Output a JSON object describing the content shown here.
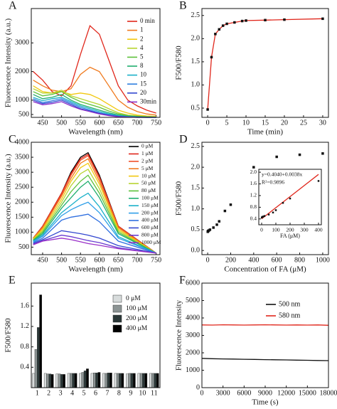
{
  "chart_data": [
    {
      "type": "line",
      "label": "A",
      "xlabel": "Wavelength (nm)",
      "ylabel": "Fluorescence Intensity (a.u.)",
      "x": [
        425,
        450,
        475,
        500,
        525,
        550,
        575,
        600,
        625,
        650,
        675,
        700,
        725,
        750
      ],
      "xlim": [
        420,
        760
      ],
      "xticks": [
        450,
        500,
        550,
        600,
        650,
        700,
        750
      ],
      "ylim": [
        400,
        4200
      ],
      "yticks": [
        500,
        1000,
        2000,
        3000
      ],
      "legend": "upper right",
      "series": [
        {
          "name": "0 min",
          "color": "#e0261b",
          "values": [
            2000,
            1700,
            1300,
            1150,
            1500,
            2600,
            3600,
            3300,
            2400,
            1500,
            1000,
            800,
            650,
            550
          ]
        },
        {
          "name": "1",
          "color": "#f07a1e",
          "values": [
            1700,
            1500,
            1350,
            1300,
            1400,
            1900,
            2150,
            2000,
            1500,
            1000,
            750,
            600,
            520,
            480
          ]
        },
        {
          "name": "2",
          "color": "#f2c80f",
          "values": [
            1500,
            1300,
            1250,
            1300,
            1200,
            1250,
            1200,
            1050,
            850,
            650,
            550,
            480,
            450,
            430
          ]
        },
        {
          "name": "4",
          "color": "#b8d430",
          "values": [
            1400,
            1250,
            1250,
            1350,
            1150,
            1050,
            950,
            850,
            700,
            560,
            480,
            450,
            430,
            420
          ]
        },
        {
          "name": "5",
          "color": "#5cc13a",
          "values": [
            1300,
            1150,
            1200,
            1300,
            1100,
            950,
            850,
            750,
            620,
            520,
            460,
            440,
            420,
            410
          ]
        },
        {
          "name": "8",
          "color": "#1fae6e",
          "values": [
            1200,
            1050,
            1100,
            1200,
            1000,
            850,
            750,
            650,
            560,
            480,
            440,
            420,
            410,
            400
          ]
        },
        {
          "name": "10",
          "color": "#1ab0c9",
          "values": [
            1100,
            980,
            1050,
            1100,
            950,
            800,
            700,
            600,
            520,
            460,
            430,
            410,
            400,
            400
          ]
        },
        {
          "name": "15",
          "color": "#2f7fe0",
          "values": [
            1050,
            920,
            980,
            1050,
            900,
            750,
            650,
            560,
            490,
            440,
            420,
            410,
            400,
            400
          ]
        },
        {
          "name": "20",
          "color": "#3348d0",
          "values": [
            1000,
            880,
            930,
            1000,
            850,
            700,
            620,
            540,
            480,
            430,
            410,
            400,
            400,
            400
          ]
        },
        {
          "name": "30min",
          "color": "#8a2fc8",
          "values": [
            950,
            840,
            880,
            950,
            800,
            680,
            600,
            520,
            460,
            420,
            410,
            400,
            400,
            400
          ]
        }
      ]
    },
    {
      "type": "line",
      "label": "B",
      "xlabel": "Time (min)",
      "ylabel": "F500/F580",
      "markers": true,
      "x": [
        0,
        1,
        2,
        3,
        4,
        5,
        7,
        9,
        10,
        15,
        20,
        30
      ],
      "xlim": [
        -1.5,
        31.5
      ],
      "xticks": [
        0,
        5,
        10,
        15,
        20,
        25,
        30
      ],
      "ylim": [
        0.3,
        2.65
      ],
      "yticks": [
        0.5,
        {
          "value": 1,
          "label": "1.0"
        },
        1.5,
        {
          "value": 2,
          "label": "2.0"
        },
        2.5
      ],
      "series": [
        {
          "color": "#e0261b",
          "values": [
            0.47,
            1.6,
            2.1,
            2.2,
            2.28,
            2.32,
            2.35,
            2.38,
            2.39,
            2.4,
            2.41,
            2.43
          ]
        }
      ]
    },
    {
      "type": "line",
      "label": "C",
      "xlabel": "Wavelength (nm)",
      "ylabel": "Fluorescence Intensity (a.u.)",
      "x": [
        425,
        450,
        500,
        525,
        550,
        570,
        600,
        650,
        750
      ],
      "xlim": [
        420,
        760
      ],
      "xticks": [
        450,
        500,
        550,
        600,
        650,
        700,
        750
      ],
      "ylim": [
        250,
        4000
      ],
      "yticks": [
        500,
        1000,
        1500,
        2000,
        2500,
        3000,
        3500,
        4000
      ],
      "legend": "upper right",
      "series": [
        {
          "name": "0 μM",
          "color": "#000000",
          "values": [
            800,
            1200,
            2300,
            3000,
            3500,
            3650,
            2900,
            1200,
            300
          ]
        },
        {
          "name": "1 μM",
          "color": "#e0261b",
          "values": [
            800,
            1200,
            2300,
            2950,
            3450,
            3600,
            2850,
            1200,
            300
          ]
        },
        {
          "name": "2 μM",
          "color": "#f0502a",
          "values": [
            800,
            1180,
            2250,
            2900,
            3400,
            3550,
            2800,
            1180,
            300
          ]
        },
        {
          "name": "5 μM",
          "color": "#f07a1e",
          "values": [
            800,
            1150,
            2200,
            2800,
            3300,
            3450,
            2700,
            1150,
            300
          ]
        },
        {
          "name": "10 μM",
          "color": "#f2c80f",
          "values": [
            780,
            1100,
            2100,
            2700,
            3150,
            3300,
            2600,
            1100,
            300
          ]
        },
        {
          "name": "50 μM",
          "color": "#b8d430",
          "values": [
            760,
            1050,
            2000,
            2550,
            2950,
            3100,
            2450,
            1050,
            300
          ]
        },
        {
          "name": "80 μM",
          "color": "#5cc13a",
          "values": [
            740,
            1000,
            1900,
            2350,
            2700,
            2900,
            2300,
            1000,
            300
          ]
        },
        {
          "name": "100 μM",
          "color": "#1fae6e",
          "values": [
            720,
            950,
            1800,
            2150,
            2500,
            2700,
            2150,
            950,
            300
          ]
        },
        {
          "name": "150 μM",
          "color": "#1ab0c9",
          "values": [
            700,
            900,
            1650,
            1900,
            2150,
            2300,
            1850,
            850,
            300
          ]
        },
        {
          "name": "200 μM",
          "color": "#2f9fe8",
          "values": [
            680,
            860,
            1550,
            1750,
            1900,
            2000,
            1650,
            800,
            300
          ]
        },
        {
          "name": "400 μM",
          "color": "#2f6fe0",
          "values": [
            650,
            800,
            1400,
            1500,
            1550,
            1600,
            1350,
            700,
            300
          ]
        },
        {
          "name": "600 μM",
          "color": "#3348d0",
          "values": [
            620,
            750,
            1050,
            1000,
            950,
            900,
            800,
            550,
            300
          ]
        },
        {
          "name": "800 μM",
          "color": "#6a3cd0",
          "values": [
            600,
            720,
            900,
            850,
            780,
            720,
            650,
            480,
            300
          ]
        },
        {
          "name": "1000 μM",
          "color": "#9a2fc8",
          "values": [
            580,
            700,
            800,
            750,
            680,
            620,
            560,
            450,
            300
          ]
        }
      ]
    },
    {
      "type": "scatter",
      "label": "D",
      "xlabel": "Concentration of FA (μM)",
      "ylabel": "F500/F580",
      "xlim": [
        -50,
        1050
      ],
      "xticks": [
        0,
        200,
        400,
        600,
        800,
        1000
      ],
      "ylim": [
        -0.1,
        2.6
      ],
      "yticks": [
        {
          "value": 0,
          "label": "0.0"
        },
        0.5,
        {
          "value": 1,
          "label": "1.0"
        },
        1.5,
        {
          "value": 2,
          "label": "2.0"
        },
        2.5
      ],
      "series": [
        {
          "color": "#111111",
          "x": [
            1,
            2,
            5,
            10,
            20,
            50,
            80,
            100,
            150,
            200,
            400,
            600,
            800,
            1000
          ],
          "values": [
            0.45,
            0.46,
            0.47,
            0.48,
            0.5,
            0.55,
            0.62,
            0.7,
            0.95,
            1.1,
            2.0,
            2.25,
            2.3,
            2.33
          ]
        }
      ]
    },
    {
      "type": "scatter",
      "xlabel": "FA (μM)",
      "annotations": [
        "y=0.4040+0.0038x",
        "R²=0.9896"
      ],
      "xlim": [
        -20,
        420
      ],
      "xticks": [
        0,
        100,
        200,
        300,
        400
      ],
      "ylim": [
        0.2,
        2.1
      ],
      "yticks": [
        0.4,
        0.8,
        1.2,
        1.6,
        {
          "value": 2,
          "label": "2.0"
        }
      ],
      "series": [
        {
          "color": "#e0261b",
          "line": true,
          "x": [
            0,
            400
          ],
          "values": [
            0.404,
            1.924
          ]
        },
        {
          "color": "#111111",
          "x": [
            1,
            5,
            10,
            20,
            50,
            80,
            100,
            150,
            200,
            400
          ],
          "values": [
            0.45,
            0.47,
            0.48,
            0.5,
            0.55,
            0.62,
            0.7,
            0.95,
            1.1,
            1.7
          ]
        }
      ]
    },
    {
      "type": "bar",
      "label": "E",
      "ylabel": "F500/F580",
      "categories": [
        "1",
        "2",
        "3",
        "4",
        "5",
        "6",
        "7",
        "8",
        "9",
        "10",
        "11"
      ],
      "ylim": [
        0,
        2.05
      ],
      "yticks": [
        0.4,
        0.8,
        1.2,
        1.6
      ],
      "legend": "upper right",
      "series": [
        {
          "name": "0 μM",
          "color": "#d8dcdc",
          "values": [
            0.28,
            0.28,
            0.27,
            0.28,
            0.28,
            0.28,
            0.28,
            0.28,
            0.27,
            0.28,
            0.28
          ]
        },
        {
          "name": "100 μM",
          "color": "#8c9494",
          "values": [
            0.75,
            0.27,
            0.27,
            0.28,
            0.3,
            0.29,
            0.28,
            0.28,
            0.28,
            0.28,
            0.28
          ]
        },
        {
          "name": "200 μM",
          "color": "#2b3838",
          "values": [
            1.18,
            0.27,
            0.26,
            0.28,
            0.33,
            0.29,
            0.29,
            0.28,
            0.28,
            0.28,
            0.28
          ]
        },
        {
          "name": "400 μM",
          "color": "#000000",
          "values": [
            1.82,
            0.26,
            0.26,
            0.28,
            0.37,
            0.3,
            0.29,
            0.28,
            0.28,
            0.28,
            0.28
          ]
        }
      ]
    },
    {
      "type": "line",
      "label": "F",
      "xlabel": "Time (s)",
      "ylabel": "Fluorescence Intensity",
      "x": [
        0,
        1500,
        3000,
        4500,
        6000,
        7500,
        9000,
        10500,
        12000,
        13500,
        15000,
        16500,
        18000
      ],
      "xlim": [
        0,
        18000
      ],
      "xticks": [
        0,
        3000,
        6000,
        9000,
        12000,
        15000,
        18000
      ],
      "ylim": [
        0,
        6000
      ],
      "yticks": [
        0,
        1000,
        2000,
        3000,
        4000,
        5000,
        6000
      ],
      "legend": "upper right",
      "series": [
        {
          "name": "500 nm",
          "color": "#111111",
          "values": [
            1680,
            1660,
            1650,
            1640,
            1630,
            1620,
            1610,
            1600,
            1590,
            1580,
            1570,
            1560,
            1550
          ]
        },
        {
          "name": "580 nm",
          "color": "#e0261b",
          "values": [
            3600,
            3590,
            3610,
            3600,
            3590,
            3600,
            3610,
            3600,
            3590,
            3600,
            3590,
            3600,
            3580
          ]
        }
      ]
    }
  ]
}
